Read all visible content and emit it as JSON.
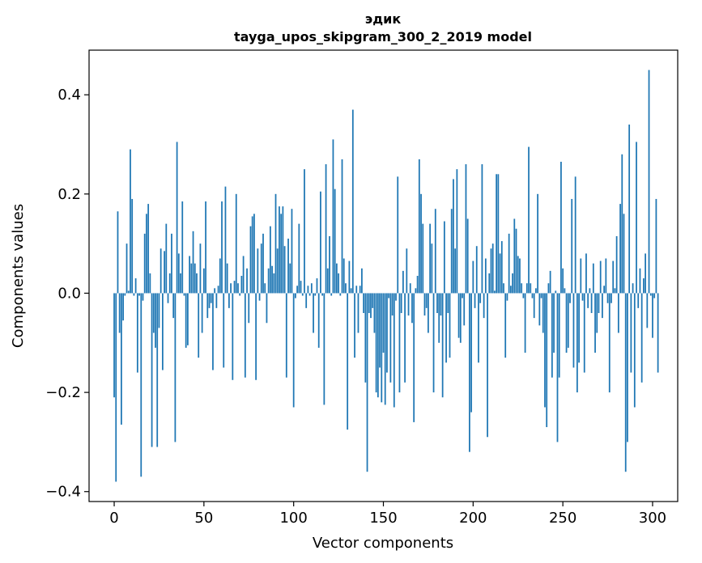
{
  "colors": {
    "bar": "#1f77b4",
    "axis": "#000000",
    "background": "#ffffff"
  },
  "chart_data": {
    "type": "bar",
    "title": "эдик",
    "subtitle": "tayga_upos_skipgram_300_2_2019 model",
    "xlabel": "Vector components",
    "ylabel": "Components values",
    "xlim": [
      -14.0,
      314.0
    ],
    "ylim": [
      -0.42,
      0.49
    ],
    "xticks": [
      0,
      50,
      100,
      150,
      200,
      250,
      300
    ],
    "xtick_labels": [
      "0",
      "50",
      "100",
      "150",
      "200",
      "250",
      "300"
    ],
    "yticks": [
      -0.4,
      -0.2,
      0.0,
      0.2,
      0.4
    ],
    "ytick_labels": [
      "−0.4",
      "−0.2",
      "0.0",
      "0.2",
      "0.4"
    ],
    "grid": false,
    "values": [
      -0.21,
      -0.38,
      0.165,
      -0.08,
      -0.265,
      -0.055,
      -0.005,
      0.1,
      0.005,
      0.29,
      0.19,
      -0.005,
      0.03,
      -0.16,
      -0.005,
      -0.37,
      -0.015,
      0.12,
      0.16,
      0.18,
      0.04,
      -0.31,
      -0.08,
      -0.11,
      -0.31,
      -0.07,
      0.09,
      -0.155,
      0.085,
      0.14,
      -0.02,
      0.04,
      0.12,
      -0.05,
      -0.3,
      0.305,
      0.08,
      0.04,
      0.185,
      -0.005,
      -0.11,
      -0.105,
      0.075,
      0.06,
      0.125,
      0.06,
      0.04,
      -0.13,
      0.1,
      -0.08,
      0.05,
      0.185,
      -0.05,
      -0.03,
      -0.02,
      -0.155,
      0.01,
      -0.03,
      0.015,
      0.07,
      0.185,
      -0.15,
      0.215,
      0.06,
      -0.03,
      0.02,
      -0.175,
      0.025,
      0.2,
      0.02,
      -0.005,
      0.035,
      0.075,
      -0.17,
      0.05,
      -0.06,
      0.135,
      0.155,
      0.16,
      -0.175,
      0.09,
      -0.015,
      0.1,
      0.12,
      0.02,
      -0.06,
      0.05,
      0.135,
      0.055,
      0.04,
      0.2,
      0.09,
      0.175,
      0.16,
      0.175,
      0.095,
      -0.17,
      0.11,
      0.06,
      0.17,
      -0.23,
      -0.01,
      0.015,
      0.14,
      0.025,
      -0.005,
      0.25,
      -0.03,
      0.015,
      -0.005,
      0.02,
      -0.08,
      -0.005,
      0.03,
      -0.11,
      0.205,
      -0.005,
      -0.225,
      0.26,
      0.05,
      0.115,
      -0.005,
      0.31,
      0.21,
      0.06,
      0.04,
      -0.005,
      0.27,
      0.07,
      0.02,
      -0.275,
      0.065,
      0.01,
      0.37,
      -0.13,
      0.015,
      -0.08,
      0.015,
      0.05,
      -0.04,
      -0.18,
      -0.36,
      -0.04,
      -0.05,
      -0.03,
      -0.08,
      -0.2,
      -0.21,
      -0.15,
      -0.22,
      -0.12,
      -0.225,
      -0.16,
      -0.01,
      -0.18,
      -0.045,
      -0.23,
      -0.015,
      0.235,
      -0.2,
      -0.04,
      0.045,
      -0.18,
      0.09,
      -0.045,
      0.02,
      -0.06,
      -0.26,
      0.01,
      0.035,
      0.27,
      0.2,
      0.14,
      -0.045,
      -0.03,
      -0.08,
      0.14,
      0.1,
      -0.2,
      0.17,
      -0.04,
      -0.1,
      -0.045,
      -0.21,
      0.145,
      -0.14,
      -0.04,
      -0.13,
      0.17,
      0.23,
      0.09,
      0.25,
      -0.09,
      -0.1,
      -0.01,
      -0.065,
      0.26,
      0.15,
      -0.32,
      -0.24,
      0.065,
      -0.03,
      0.095,
      -0.14,
      -0.02,
      0.26,
      -0.05,
      0.07,
      -0.29,
      0.04,
      0.09,
      0.1,
      0.005,
      0.24,
      0.24,
      0.08,
      0.105,
      0.02,
      -0.13,
      -0.015,
      0.12,
      0.015,
      0.04,
      0.15,
      0.13,
      0.075,
      0.07,
      0.02,
      -0.01,
      -0.12,
      0.02,
      0.295,
      0.02,
      -0.01,
      -0.05,
      0.01,
      0.2,
      -0.065,
      -0.01,
      -0.08,
      -0.23,
      -0.27,
      0.02,
      0.045,
      -0.17,
      -0.12,
      0.005,
      -0.3,
      -0.17,
      0.265,
      0.05,
      0.01,
      -0.12,
      -0.11,
      -0.02,
      0.19,
      -0.15,
      0.235,
      -0.2,
      -0.14,
      0.07,
      -0.015,
      -0.16,
      0.08,
      -0.03,
      0.01,
      -0.04,
      0.06,
      -0.12,
      -0.08,
      -0.04,
      0.065,
      -0.05,
      0.015,
      0.07,
      -0.02,
      -0.2,
      -0.02,
      0.065,
      0.01,
      0.115,
      -0.08,
      0.18,
      0.28,
      0.16,
      -0.36,
      -0.3,
      0.34,
      -0.16,
      0.02,
      -0.23,
      0.305,
      -0.03,
      0.05,
      -0.18,
      0.03,
      0.08,
      -0.07,
      0.45,
      -0.005,
      -0.09,
      -0.01,
      0.19,
      -0.16
    ]
  }
}
